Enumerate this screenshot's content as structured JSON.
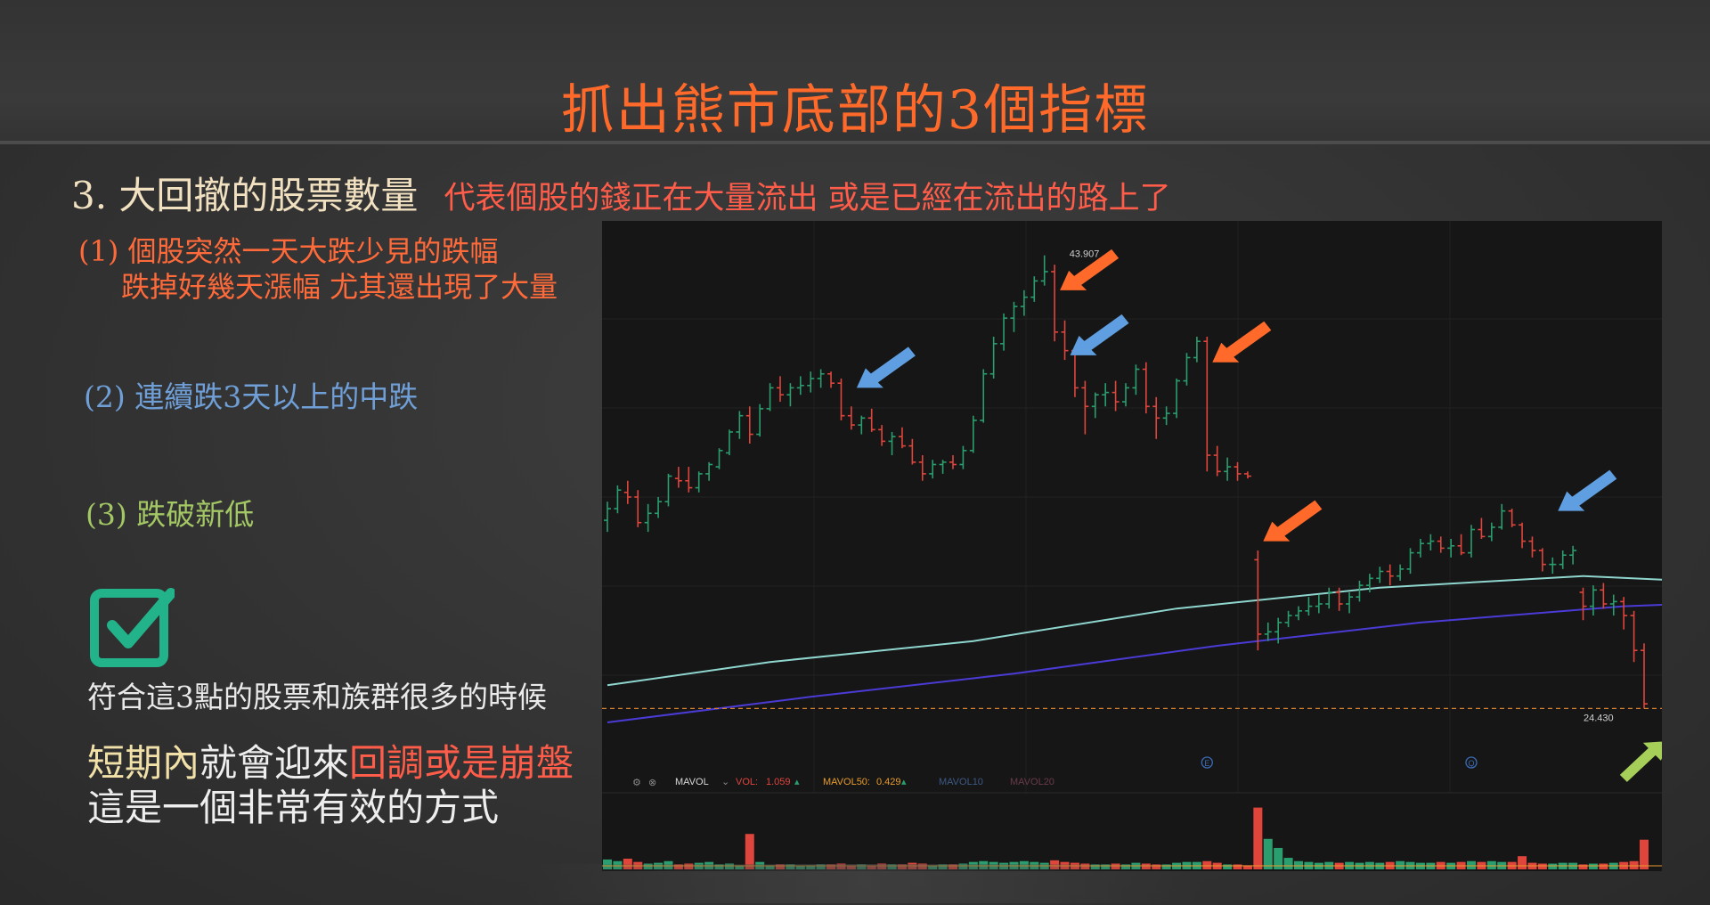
{
  "slide": {
    "title": "抓出熊市底部的3個指標",
    "heading": "3. 大回撤的股票數量",
    "heading_desc": "代表個股的錢正在大量流出 或是已經在流出的路上了",
    "points": [
      {
        "line1": "(1) 個股突然一天大跌少見的跌幅",
        "line2": "跌掉好幾天漲幅 尤其還出現了大量",
        "color": "#ff6a3a"
      },
      {
        "line1": "(2) 連續跌3天以上的中跌",
        "color": "#6f9fd6"
      },
      {
        "line1": "(3) 跌破新低",
        "color": "#a3c764"
      }
    ],
    "checkbox_icon": "checkbox-checked-icon",
    "summary": "符合這3點的股票和族群很多的時候",
    "conclusion": {
      "part1": "短期內",
      "part2": "就會迎來",
      "part3": "回調或是崩盤",
      "line2": "這是一個非常有效的方式"
    }
  },
  "chart_data": {
    "type": "candlestick",
    "price_max_label": "43.907",
    "price_min_label": "24.430",
    "indicator_bar": {
      "name": "MAVOL",
      "vol_label": "VOL:",
      "vol_value": "1.059",
      "mavol50_label": "MAVOL50:",
      "mavol50_value": "0.429",
      "mavol10_label": "MAVOL10",
      "mavol20_label": "MAVOL20"
    },
    "event_markers": [
      "E",
      "Q"
    ],
    "colors": {
      "up": "#2a9e6e",
      "down": "#e0453c",
      "ma_teal": "#8fd6cf",
      "ma_blue": "#4b3bd6",
      "arrow_orange": "#ff6a2a",
      "arrow_blue": "#5f9ee0",
      "arrow_green": "#a6cf5a",
      "support_line": "#d9822b",
      "background": "#161616"
    },
    "candles": [
      [
        32.5,
        33.3,
        32.0,
        33.0
      ],
      [
        33.0,
        34.0,
        32.8,
        33.8
      ],
      [
        33.7,
        34.2,
        33.2,
        33.5
      ],
      [
        33.5,
        33.8,
        32.2,
        32.4
      ],
      [
        32.4,
        33.2,
        32.0,
        32.8
      ],
      [
        32.8,
        33.5,
        32.6,
        33.3
      ],
      [
        33.3,
        34.5,
        33.1,
        34.4
      ],
      [
        34.3,
        34.8,
        33.9,
        34.2
      ],
      [
        34.2,
        34.8,
        33.7,
        33.9
      ],
      [
        33.9,
        34.6,
        33.7,
        34.5
      ],
      [
        34.5,
        35.0,
        34.2,
        34.9
      ],
      [
        34.8,
        35.6,
        34.7,
        35.5
      ],
      [
        35.4,
        36.4,
        35.3,
        36.3
      ],
      [
        36.3,
        37.2,
        36.0,
        37.0
      ],
      [
        37.0,
        37.4,
        35.8,
        36.2
      ],
      [
        36.2,
        37.5,
        36.1,
        37.3
      ],
      [
        37.3,
        38.4,
        37.2,
        38.2
      ],
      [
        38.2,
        38.7,
        37.6,
        37.9
      ],
      [
        37.9,
        38.4,
        37.4,
        38.2
      ],
      [
        38.2,
        38.7,
        37.9,
        38.3
      ],
      [
        38.3,
        38.9,
        38.0,
        38.6
      ],
      [
        38.6,
        39.0,
        38.2,
        38.8
      ],
      [
        38.8,
        38.9,
        38.2,
        38.4
      ],
      [
        38.4,
        38.6,
        36.8,
        37.0
      ],
      [
        37.0,
        37.4,
        36.4,
        36.6
      ],
      [
        36.6,
        37.0,
        36.2,
        36.9
      ],
      [
        36.9,
        37.3,
        36.3,
        36.4
      ],
      [
        36.4,
        36.6,
        35.7,
        35.9
      ],
      [
        35.9,
        36.3,
        35.3,
        36.1
      ],
      [
        36.1,
        36.5,
        35.6,
        35.7
      ],
      [
        35.7,
        36.0,
        34.9,
        35.0
      ],
      [
        35.0,
        35.3,
        34.2,
        34.5
      ],
      [
        34.5,
        35.1,
        34.3,
        34.9
      ],
      [
        34.9,
        35.1,
        34.5,
        35.0
      ],
      [
        35.0,
        35.3,
        34.7,
        34.9
      ],
      [
        34.9,
        35.7,
        34.7,
        35.5
      ],
      [
        35.5,
        37.0,
        35.4,
        36.8
      ],
      [
        36.8,
        39.0,
        36.7,
        38.8
      ],
      [
        38.8,
        40.4,
        38.6,
        40.1
      ],
      [
        40.1,
        41.4,
        39.8,
        41.2
      ],
      [
        41.2,
        41.9,
        40.6,
        41.7
      ],
      [
        41.7,
        42.4,
        41.3,
        42.1
      ],
      [
        42.1,
        43.0,
        41.9,
        42.8
      ],
      [
        42.8,
        43.9,
        42.6,
        43.2
      ],
      [
        43.2,
        43.5,
        40.2,
        40.6
      ],
      [
        40.6,
        41.1,
        39.4,
        39.8
      ],
      [
        39.8,
        40.0,
        37.8,
        38.2
      ],
      [
        38.2,
        38.5,
        36.2,
        37.4
      ],
      [
        37.4,
        38.0,
        36.9,
        37.9
      ],
      [
        37.9,
        38.4,
        37.4,
        38.0
      ],
      [
        38.0,
        38.5,
        37.2,
        37.6
      ],
      [
        37.6,
        38.4,
        37.4,
        38.2
      ],
      [
        38.2,
        39.2,
        37.9,
        39.0
      ],
      [
        39.0,
        39.3,
        37.1,
        37.4
      ],
      [
        37.4,
        37.8,
        36.0,
        36.9
      ],
      [
        36.9,
        37.4,
        36.6,
        37.1
      ],
      [
        37.1,
        38.6,
        36.9,
        38.5
      ],
      [
        38.5,
        39.7,
        38.3,
        39.5
      ],
      [
        39.5,
        40.4,
        39.3,
        40.2
      ],
      [
        40.2,
        40.4,
        34.6,
        35.3
      ],
      [
        35.3,
        35.7,
        34.4,
        34.6
      ],
      [
        34.6,
        35.2,
        34.2,
        34.8
      ],
      [
        34.8,
        35.0,
        34.2,
        34.5
      ],
      [
        34.5,
        34.6,
        34.3,
        34.4
      ],
      [
        30.8,
        31.2,
        26.9,
        27.6
      ],
      [
        27.6,
        28.1,
        27.3,
        27.7
      ],
      [
        27.7,
        28.3,
        27.2,
        28.1
      ],
      [
        28.1,
        28.6,
        27.9,
        28.4
      ],
      [
        28.4,
        28.8,
        28.2,
        28.6
      ],
      [
        28.6,
        29.2,
        28.4,
        28.8
      ],
      [
        28.8,
        29.3,
        28.5,
        28.9
      ],
      [
        28.9,
        29.6,
        28.7,
        29.4
      ],
      [
        29.4,
        29.6,
        28.6,
        28.9
      ],
      [
        28.9,
        29.4,
        28.5,
        29.2
      ],
      [
        29.2,
        29.9,
        29.0,
        29.7
      ],
      [
        29.7,
        30.2,
        29.4,
        30.0
      ],
      [
        30.0,
        30.5,
        29.8,
        30.3
      ],
      [
        30.3,
        30.6,
        29.7,
        30.1
      ],
      [
        30.1,
        30.6,
        29.9,
        30.4
      ],
      [
        30.4,
        31.3,
        30.2,
        31.1
      ],
      [
        31.1,
        31.7,
        30.9,
        31.5
      ],
      [
        31.5,
        31.9,
        31.2,
        31.6
      ],
      [
        31.6,
        31.8,
        31.1,
        31.3
      ],
      [
        31.3,
        31.7,
        30.9,
        31.4
      ],
      [
        31.4,
        31.9,
        31.0,
        31.1
      ],
      [
        31.1,
        32.3,
        30.9,
        32.1
      ],
      [
        32.1,
        32.6,
        31.7,
        31.8
      ],
      [
        31.8,
        32.4,
        31.6,
        32.2
      ],
      [
        32.2,
        33.2,
        32.1,
        32.9
      ],
      [
        32.9,
        33.0,
        32.2,
        32.3
      ],
      [
        32.3,
        32.4,
        31.3,
        31.6
      ],
      [
        31.6,
        31.8,
        30.9,
        31.2
      ],
      [
        31.2,
        31.3,
        30.3,
        30.6
      ],
      [
        30.6,
        30.9,
        30.2,
        30.6
      ],
      [
        30.6,
        31.2,
        30.4,
        31.0
      ],
      [
        31.0,
        31.4,
        30.6,
        31.2
      ],
      [
        29.4,
        29.6,
        28.2,
        28.8
      ],
      [
        28.8,
        29.7,
        28.4,
        29.5
      ],
      [
        29.5,
        29.8,
        28.7,
        28.9
      ],
      [
        28.9,
        29.3,
        28.4,
        29.0
      ],
      [
        29.0,
        29.2,
        27.8,
        28.4
      ],
      [
        28.4,
        28.6,
        26.4,
        26.9
      ],
      [
        26.9,
        27.2,
        24.4,
        24.6
      ]
    ],
    "ma_teal": [
      [
        0,
        25.4
      ],
      [
        16,
        26.4
      ],
      [
        36,
        27.3
      ],
      [
        56,
        28.7
      ],
      [
        76,
        29.6
      ],
      [
        96,
        30.1
      ],
      [
        106,
        29.9
      ]
    ],
    "ma_blue": [
      [
        0,
        23.8
      ],
      [
        20,
        24.9
      ],
      [
        40,
        25.9
      ],
      [
        60,
        27.1
      ],
      [
        80,
        28.1
      ],
      [
        100,
        28.8
      ],
      [
        106,
        28.9
      ]
    ],
    "volume": [
      1.2,
      1.0,
      1.3,
      0.9,
      0.7,
      0.8,
      1.0,
      0.6,
      0.7,
      0.8,
      0.9,
      0.6,
      0.7,
      0.5,
      4.3,
      0.9,
      0.5,
      0.6,
      0.6,
      0.4,
      0.5,
      0.6,
      0.6,
      0.7,
      0.5,
      0.6,
      0.5,
      0.7,
      0.6,
      0.6,
      0.8,
      0.7,
      0.5,
      0.6,
      0.6,
      0.7,
      0.9,
      1.0,
      0.9,
      0.8,
      0.9,
      1.0,
      0.9,
      0.8,
      1.1,
      0.9,
      0.8,
      0.7,
      0.6,
      0.6,
      0.7,
      0.6,
      0.8,
      0.7,
      0.6,
      0.6,
      0.8,
      0.9,
      0.9,
      1.0,
      0.8,
      0.6,
      0.6,
      0.5,
      7.5,
      3.7,
      2.6,
      1.4,
      1.0,
      0.9,
      0.8,
      0.9,
      0.8,
      0.9,
      0.8,
      0.9,
      0.8,
      0.9,
      1.0,
      0.9,
      0.8,
      0.8,
      0.9,
      0.8,
      0.9,
      1.0,
      0.9,
      1.0,
      0.9,
      0.9,
      1.6,
      0.8,
      0.7,
      0.7,
      0.8,
      0.8,
      0.6,
      0.7,
      0.7,
      0.8,
      0.9,
      1.0,
      3.6
    ],
    "volume_max": 8.0,
    "price_range": [
      22.0,
      45.0
    ],
    "arrows": [
      {
        "color": "orange",
        "index": 44,
        "price": 42.4,
        "dir": "down-left"
      },
      {
        "color": "blue",
        "index": 45,
        "price": 39.6,
        "dir": "down-left"
      },
      {
        "color": "orange",
        "index": 59,
        "price": 39.3,
        "dir": "down-left"
      },
      {
        "color": "blue",
        "index": 24,
        "price": 38.2,
        "dir": "down-left"
      },
      {
        "color": "orange",
        "index": 64,
        "price": 31.6,
        "dir": "down-left"
      },
      {
        "color": "blue",
        "index": 93,
        "price": 32.9,
        "dir": "down-left"
      },
      {
        "color": "green",
        "index": 104,
        "price": 23.0,
        "dir": "up-right"
      }
    ],
    "marker_positions": [
      [
        59,
        "E"
      ],
      [
        85,
        "Q"
      ]
    ],
    "grid": true
  }
}
